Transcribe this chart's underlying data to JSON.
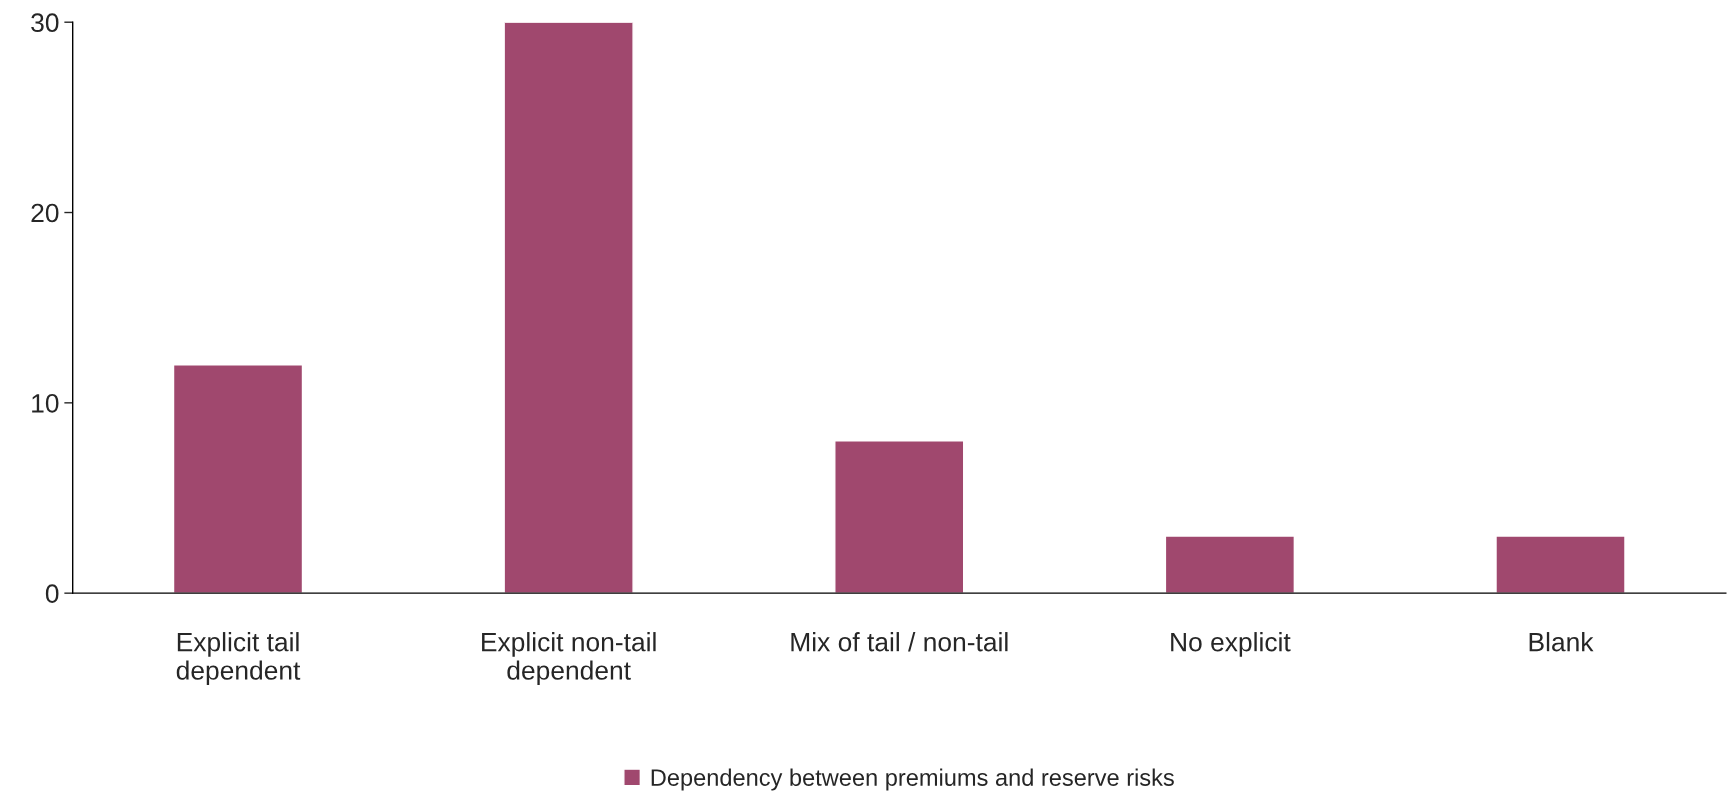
{
  "chart_data": {
    "type": "bar",
    "categories": [
      "Explicit tail\ndependent",
      "Explicit non-tail\ndependent",
      "Mix of tail / non-tail",
      "No explicit",
      "Blank"
    ],
    "series": [
      {
        "name": "Dependency between premiums and reserve risks",
        "color": "#a0486e",
        "values": [
          12,
          30,
          8,
          3,
          3
        ]
      }
    ],
    "ylim": [
      0,
      30
    ],
    "yticks": [
      0,
      10,
      20,
      30
    ],
    "grid": false,
    "legend": "bottom"
  }
}
